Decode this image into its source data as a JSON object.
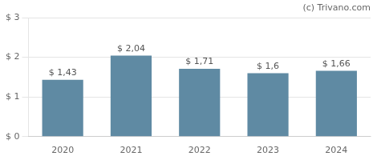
{
  "chart_data": {
    "type": "bar",
    "categories": [
      "2020",
      "2021",
      "2022",
      "2023",
      "2024"
    ],
    "values": [
      1.43,
      2.04,
      1.71,
      1.6,
      1.66
    ],
    "value_labels": [
      "$ 1,43",
      "$ 2,04",
      "$ 1,71",
      "$ 1,6",
      "$ 1,66"
    ],
    "data_labels": true,
    "color": "#5f8aa3",
    "ylim": [
      0,
      3
    ],
    "yticks": [
      {
        "value": 0,
        "label": "$ 0"
      },
      {
        "value": 1,
        "label": "$ 1"
      },
      {
        "value": 2,
        "label": "$ 2"
      },
      {
        "value": 3,
        "label": "$ 3"
      }
    ],
    "grid": true,
    "annotations": [
      "(c) Trivano.com"
    ]
  }
}
